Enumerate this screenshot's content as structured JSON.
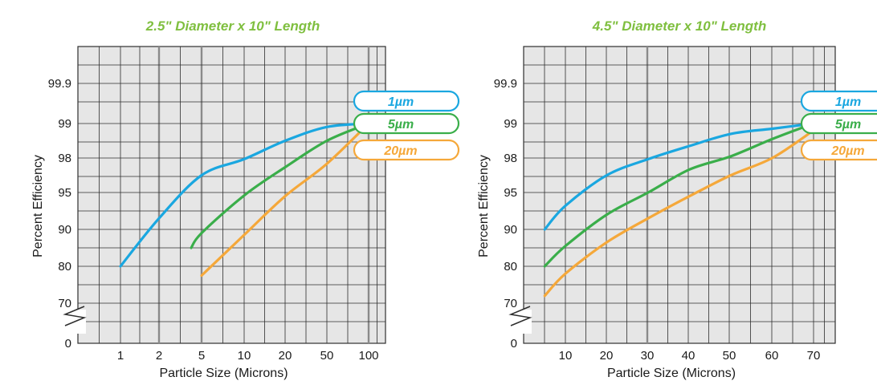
{
  "colors": {
    "title": "#7fbf3f",
    "plot_bg": "#e6e6e6",
    "grid": "#2e2e2e",
    "grid_heavy": "#8a8a8a",
    "1um": "#1aa7e0",
    "5um": "#3aae4a",
    "20um": "#f5a83a"
  },
  "chart_data": [
    {
      "type": "line",
      "title": "2.5\" Diameter x 10\" Length",
      "xlabel": "Particle Size (Microns)",
      "ylabel": "Percent Efficiency",
      "x_scale": "categorical",
      "categories": [
        "1",
        "2",
        "5",
        "10",
        "20",
        "50",
        "100"
      ],
      "y_scale": "categorical",
      "y_ticks": [
        "0",
        "70",
        "80",
        "90",
        "95",
        "98",
        "99",
        "99.9"
      ],
      "axis_break": "y",
      "grid": true,
      "legend_position": "right",
      "series": [
        {
          "name": "1µm",
          "color_key": "1um",
          "x": [
            1,
            2,
            5,
            10,
            20,
            50,
            100
          ],
          "y": [
            80,
            91.5,
            96.5,
            97.9,
            98.5,
            98.9,
            99
          ]
        },
        {
          "name": "5µm",
          "color_key": "5um",
          "x": [
            4,
            5,
            10,
            20,
            50,
            100
          ],
          "y": [
            85,
            89,
            94.6,
            97.2,
            98.5,
            99
          ]
        },
        {
          "name": "20µm",
          "color_key": "20um",
          "x": [
            5,
            10,
            20,
            50,
            100
          ],
          "y": [
            77.5,
            88.5,
            94.5,
            97.5,
            99
          ]
        }
      ]
    },
    {
      "type": "line",
      "title": "4.5\" Diameter x 10\" Length",
      "xlabel": "Particle Size (Microns)",
      "ylabel": "Percent Efficiency",
      "x_scale": "linear",
      "x_ticks": [
        "10",
        "20",
        "30",
        "40",
        "50",
        "60",
        "70"
      ],
      "y_scale": "categorical",
      "y_ticks": [
        "0",
        "70",
        "80",
        "90",
        "95",
        "98",
        "99",
        "99.9"
      ],
      "axis_break": "y",
      "grid": true,
      "legend_position": "right",
      "series": [
        {
          "name": "1µm",
          "color_key": "1um",
          "x": [
            5,
            10,
            20,
            30,
            40,
            50,
            60,
            70
          ],
          "y": [
            90,
            93.2,
            96.5,
            97.9,
            98.35,
            98.7,
            98.85,
            99
          ]
        },
        {
          "name": "5µm",
          "color_key": "5um",
          "x": [
            5,
            10,
            20,
            30,
            40,
            50,
            60,
            70
          ],
          "y": [
            80,
            85.5,
            92,
            95,
            97,
            98.05,
            98.55,
            99
          ]
        },
        {
          "name": "20µm",
          "color_key": "20um",
          "x": [
            5,
            10,
            20,
            30,
            40,
            50,
            60,
            70
          ],
          "y": [
            72,
            78,
            86.5,
            91.5,
            94.5,
            96.5,
            98,
            98.8
          ]
        }
      ]
    }
  ]
}
